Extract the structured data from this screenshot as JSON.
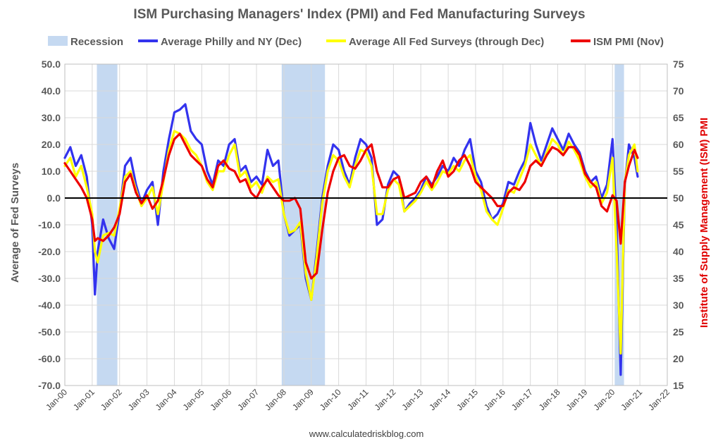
{
  "chart_data": {
    "type": "line",
    "title": "ISM Purchasing Managers' Index (PMI) and Fed Manufacturing Surveys",
    "ylabel": "Average of Fed Surveys",
    "ylabel_right": "Institute of Supply Management (ISM) PMI",
    "source": "www.calculatedriskblog.com",
    "ylim": [
      -70,
      50
    ],
    "ylim_right": [
      15,
      75
    ],
    "y_ticks": [
      "50.0",
      "40.0",
      "30.0",
      "20.0",
      "10.0",
      "0.0",
      "-10.0",
      "-20.0",
      "-30.0",
      "-40.0",
      "-50.0",
      "-60.0",
      "-70.0"
    ],
    "y_right_ticks": [
      "75",
      "70",
      "65",
      "60",
      "55",
      "50",
      "45",
      "40",
      "35",
      "30",
      "25",
      "20",
      "15"
    ],
    "x_ticks": [
      "Jan-00",
      "Jan-01",
      "Jan-02",
      "Jan-03",
      "Jan-04",
      "Jan-05",
      "Jan-06",
      "Jan-07",
      "Jan-08",
      "Jan-09",
      "Jan-10",
      "Jan-11",
      "Jan-12",
      "Jan-13",
      "Jan-14",
      "Jan-15",
      "Jan-16",
      "Jan-17",
      "Jan-18",
      "Jan-19",
      "Jan-20",
      "Jan-21",
      "Jan-22"
    ],
    "xlim": [
      2000,
      2022
    ],
    "legend_position": "top",
    "grid": true,
    "recessions": [
      {
        "name": "Recession",
        "start": 2001.17,
        "end": 2001.92
      },
      {
        "name": "Recession",
        "start": 2007.92,
        "end": 2009.5
      },
      {
        "name": "Recession",
        "start": 2020.08,
        "end": 2020.42
      }
    ],
    "series": [
      {
        "name": "Average Philly and NY (Dec)",
        "color": "#3333ee",
        "axis": "left",
        "x": [
          2000.0,
          2000.2,
          2000.4,
          2000.6,
          2000.8,
          2001.0,
          2001.1,
          2001.2,
          2001.4,
          2001.6,
          2001.8,
          2002.0,
          2002.2,
          2002.4,
          2002.6,
          2002.8,
          2003.0,
          2003.2,
          2003.4,
          2003.6,
          2003.8,
          2004.0,
          2004.2,
          2004.4,
          2004.6,
          2004.8,
          2005.0,
          2005.2,
          2005.4,
          2005.6,
          2005.8,
          2006.0,
          2006.2,
          2006.4,
          2006.6,
          2006.8,
          2007.0,
          2007.2,
          2007.4,
          2007.6,
          2007.8,
          2008.0,
          2008.2,
          2008.4,
          2008.6,
          2008.8,
          2009.0,
          2009.2,
          2009.4,
          2009.6,
          2009.8,
          2010.0,
          2010.2,
          2010.4,
          2010.6,
          2010.8,
          2011.0,
          2011.2,
          2011.4,
          2011.6,
          2011.8,
          2012.0,
          2012.2,
          2012.4,
          2012.6,
          2012.8,
          2013.0,
          2013.2,
          2013.4,
          2013.6,
          2013.8,
          2014.0,
          2014.2,
          2014.4,
          2014.6,
          2014.8,
          2015.0,
          2015.2,
          2015.4,
          2015.6,
          2015.8,
          2016.0,
          2016.2,
          2016.4,
          2016.6,
          2016.8,
          2017.0,
          2017.2,
          2017.4,
          2017.6,
          2017.8,
          2018.0,
          2018.2,
          2018.4,
          2018.6,
          2018.8,
          2019.0,
          2019.2,
          2019.4,
          2019.6,
          2019.8,
          2020.0,
          2020.15,
          2020.3,
          2020.45,
          2020.6,
          2020.8,
          2020.92
        ],
        "values": [
          15,
          19,
          12,
          16,
          8,
          -10,
          -36,
          -20,
          -8,
          -15,
          -19,
          -5,
          12,
          15,
          5,
          -2,
          3,
          6,
          -10,
          10,
          22,
          32,
          33,
          35,
          25,
          22,
          20,
          10,
          5,
          14,
          12,
          20,
          22,
          10,
          12,
          6,
          8,
          5,
          18,
          12,
          14,
          -6,
          -14,
          -12,
          -10,
          -30,
          -38,
          -20,
          0,
          12,
          20,
          18,
          10,
          5,
          15,
          22,
          20,
          15,
          -10,
          -8,
          5,
          10,
          8,
          -5,
          -2,
          0,
          3,
          8,
          5,
          8,
          12,
          10,
          15,
          12,
          18,
          22,
          10,
          6,
          -3,
          -8,
          -6,
          -2,
          6,
          5,
          10,
          14,
          28,
          20,
          14,
          20,
          26,
          22,
          18,
          24,
          20,
          17,
          10,
          6,
          8,
          0,
          5,
          22,
          -10,
          -66,
          5,
          20,
          15,
          8
        ]
      },
      {
        "name": "Average All Fed Surveys (through Dec)",
        "color": "#ffff00",
        "axis": "left",
        "x": [
          2000.0,
          2000.2,
          2000.4,
          2000.6,
          2000.8,
          2001.0,
          2001.1,
          2001.2,
          2001.4,
          2001.6,
          2001.8,
          2002.0,
          2002.2,
          2002.4,
          2002.6,
          2002.8,
          2003.0,
          2003.2,
          2003.4,
          2003.6,
          2003.8,
          2004.0,
          2004.2,
          2004.4,
          2004.6,
          2004.8,
          2005.0,
          2005.2,
          2005.4,
          2005.6,
          2005.8,
          2006.0,
          2006.2,
          2006.4,
          2006.6,
          2006.8,
          2007.0,
          2007.2,
          2007.4,
          2007.6,
          2007.8,
          2008.0,
          2008.2,
          2008.4,
          2008.6,
          2008.8,
          2009.0,
          2009.2,
          2009.4,
          2009.6,
          2009.8,
          2010.0,
          2010.2,
          2010.4,
          2010.6,
          2010.8,
          2011.0,
          2011.2,
          2011.4,
          2011.6,
          2011.8,
          2012.0,
          2012.2,
          2012.4,
          2012.6,
          2012.8,
          2013.0,
          2013.2,
          2013.4,
          2013.6,
          2013.8,
          2014.0,
          2014.2,
          2014.4,
          2014.6,
          2014.8,
          2015.0,
          2015.2,
          2015.4,
          2015.6,
          2015.8,
          2016.0,
          2016.2,
          2016.4,
          2016.6,
          2016.8,
          2017.0,
          2017.2,
          2017.4,
          2017.6,
          2017.8,
          2018.0,
          2018.2,
          2018.4,
          2018.6,
          2018.8,
          2019.0,
          2019.2,
          2019.4,
          2019.6,
          2019.8,
          2020.0,
          2020.15,
          2020.3,
          2020.45,
          2020.6,
          2020.8,
          2020.92
        ],
        "values": [
          12,
          15,
          8,
          12,
          4,
          -6,
          -20,
          -24,
          -14,
          -13,
          -14,
          -4,
          8,
          10,
          3,
          -3,
          0,
          4,
          -6,
          6,
          18,
          25,
          24,
          22,
          18,
          16,
          12,
          6,
          3,
          10,
          10,
          16,
          20,
          8,
          10,
          4,
          6,
          2,
          8,
          6,
          7,
          -6,
          -13,
          -12,
          -9,
          -28,
          -38,
          -22,
          -2,
          10,
          16,
          14,
          8,
          4,
          12,
          18,
          17,
          12,
          -6,
          -6,
          3,
          7,
          5,
          -5,
          -3,
          -1,
          2,
          6,
          3,
          6,
          10,
          9,
          12,
          10,
          14,
          16,
          8,
          3,
          -5,
          -8,
          -10,
          -4,
          3,
          2,
          7,
          12,
          20,
          16,
          12,
          17,
          22,
          20,
          16,
          21,
          18,
          14,
          8,
          4,
          6,
          -2,
          2,
          15,
          -20,
          -58,
          6,
          16,
          20,
          10
        ]
      },
      {
        "name": "ISM PMI (Nov)",
        "color": "#ee0000",
        "axis": "right",
        "x": [
          2000.0,
          2000.2,
          2000.4,
          2000.6,
          2000.8,
          2001.0,
          2001.1,
          2001.2,
          2001.4,
          2001.6,
          2001.8,
          2002.0,
          2002.2,
          2002.4,
          2002.6,
          2002.8,
          2003.0,
          2003.2,
          2003.4,
          2003.6,
          2003.8,
          2004.0,
          2004.2,
          2004.4,
          2004.6,
          2004.8,
          2005.0,
          2005.2,
          2005.4,
          2005.6,
          2005.8,
          2006.0,
          2006.2,
          2006.4,
          2006.6,
          2006.8,
          2007.0,
          2007.2,
          2007.4,
          2007.6,
          2007.8,
          2008.0,
          2008.2,
          2008.4,
          2008.6,
          2008.8,
          2009.0,
          2009.2,
          2009.4,
          2009.6,
          2009.8,
          2010.0,
          2010.2,
          2010.4,
          2010.6,
          2010.8,
          2011.0,
          2011.2,
          2011.4,
          2011.6,
          2011.8,
          2012.0,
          2012.2,
          2012.4,
          2012.6,
          2012.8,
          2013.0,
          2013.2,
          2013.4,
          2013.6,
          2013.8,
          2014.0,
          2014.2,
          2014.4,
          2014.6,
          2014.8,
          2015.0,
          2015.2,
          2015.4,
          2015.6,
          2015.8,
          2016.0,
          2016.2,
          2016.4,
          2016.6,
          2016.8,
          2017.0,
          2017.2,
          2017.4,
          2017.6,
          2017.8,
          2018.0,
          2018.2,
          2018.4,
          2018.6,
          2018.8,
          2019.0,
          2019.2,
          2019.4,
          2019.6,
          2019.8,
          2020.0,
          2020.15,
          2020.3,
          2020.45,
          2020.6,
          2020.8,
          2020.92
        ],
        "values": [
          56.5,
          55,
          53.5,
          52,
          50,
          46,
          42,
          42.5,
          42,
          43,
          44.5,
          47,
          53,
          54.5,
          51,
          49,
          50.5,
          48,
          49.5,
          53.5,
          58,
          61,
          62,
          60,
          58,
          57,
          56,
          53.5,
          52,
          56,
          57,
          55.5,
          55,
          53,
          53.5,
          51,
          50,
          52,
          53.5,
          52,
          50.5,
          49.5,
          49.5,
          50,
          48,
          38,
          35,
          36,
          44,
          51,
          55,
          57.5,
          58,
          56,
          55.5,
          57,
          59,
          60,
          55,
          52,
          52,
          53.5,
          54,
          50,
          50.5,
          51,
          53,
          54,
          52,
          55,
          57,
          54,
          55,
          57,
          58,
          56,
          53,
          52,
          51,
          50,
          48.5,
          48.5,
          51,
          52,
          51.5,
          53,
          56,
          57,
          56,
          58,
          59.5,
          59,
          58,
          59.5,
          59.5,
          58,
          54.5,
          53,
          52,
          48.5,
          47.5,
          50.5,
          49.5,
          41.5,
          53,
          56,
          59,
          57.5
        ]
      }
    ]
  }
}
